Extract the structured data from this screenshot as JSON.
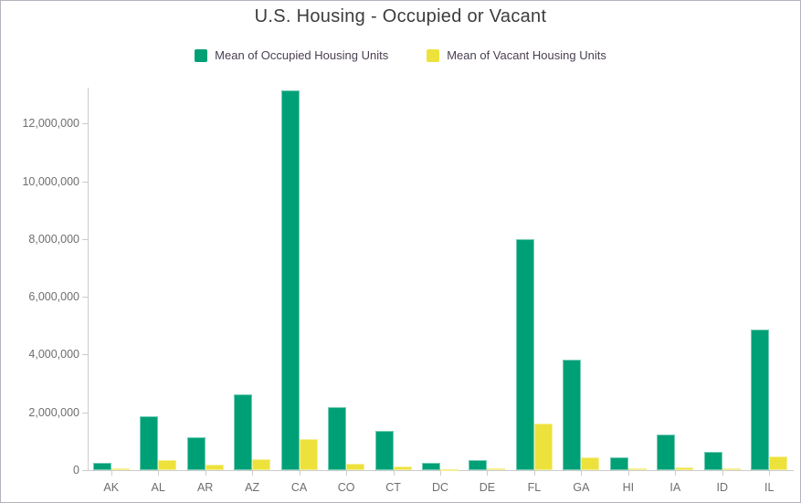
{
  "title": "U.S. Housing - Occupied or Vacant",
  "colors": {
    "occupied": "#00A077",
    "vacant": "#EDE23C",
    "axis": "#CCCCCC",
    "tick_text": "#6E6E6E",
    "title_text": "#3C3C3C",
    "legend_text": "#4A4053",
    "frame_border": "#B4B4BC"
  },
  "chart_data": {
    "type": "bar",
    "title": "U.S. Housing - Occupied or Vacant",
    "xlabel": "",
    "ylabel": "",
    "grid": false,
    "legend_position": "top",
    "categories": [
      "AK",
      "AL",
      "AR",
      "AZ",
      "CA",
      "CO",
      "CT",
      "DC",
      "DE",
      "FL",
      "GA",
      "HI",
      "IA",
      "ID",
      "IL"
    ],
    "series": [
      {
        "name": "Mean of Occupied Housing Units",
        "color_key": "occupied",
        "values": [
          260000,
          1870000,
          1140000,
          2630000,
          13150000,
          2170000,
          1370000,
          250000,
          340000,
          8000000,
          3820000,
          430000,
          1240000,
          620000,
          4870000
        ]
      },
      {
        "name": "Mean of Vacant Housing Units",
        "color_key": "vacant",
        "values": [
          60000,
          350000,
          180000,
          370000,
          1090000,
          210000,
          120000,
          40000,
          70000,
          1600000,
          440000,
          50000,
          100000,
          60000,
          460000
        ]
      }
    ],
    "ylim": [
      0,
      13240000
    ],
    "yticks": [
      0,
      2000000,
      4000000,
      6000000,
      8000000,
      10000000,
      12000000
    ]
  }
}
